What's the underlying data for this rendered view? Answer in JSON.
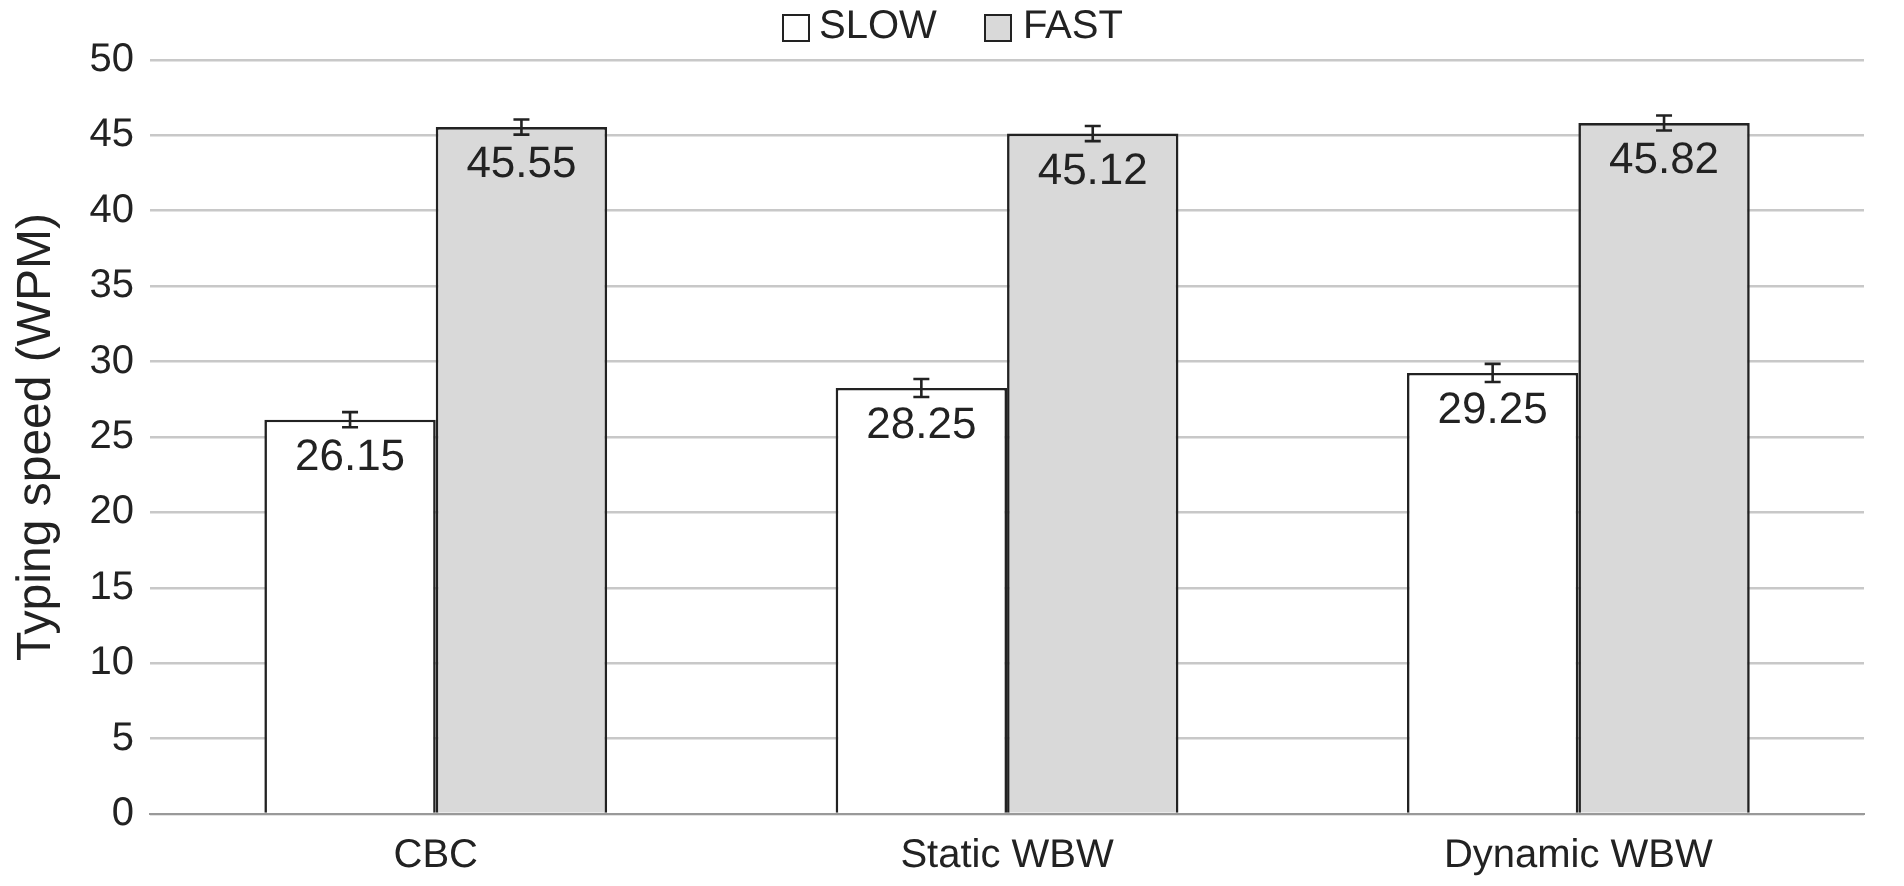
{
  "chart_data": {
    "type": "bar",
    "ylabel": "Typing speed (WPM)",
    "categories": [
      "CBC",
      "Static WBW",
      "Dynamic WBW"
    ],
    "series": [
      {
        "name": "SLOW",
        "color": "#ffffff",
        "values": [
          26.15,
          28.25,
          29.25
        ],
        "errors": [
          0.5,
          0.6,
          0.6
        ]
      },
      {
        "name": "FAST",
        "color": "#d9d9d9",
        "values": [
          45.55,
          45.12,
          45.82
        ],
        "errors": [
          0.5,
          0.5,
          0.5
        ]
      }
    ],
    "ylim": [
      0,
      50
    ],
    "yticks": [
      0,
      5,
      10,
      15,
      20,
      25,
      30,
      35,
      40,
      45,
      50
    ],
    "grid": "y",
    "legend": "top",
    "data_labels": true
  }
}
